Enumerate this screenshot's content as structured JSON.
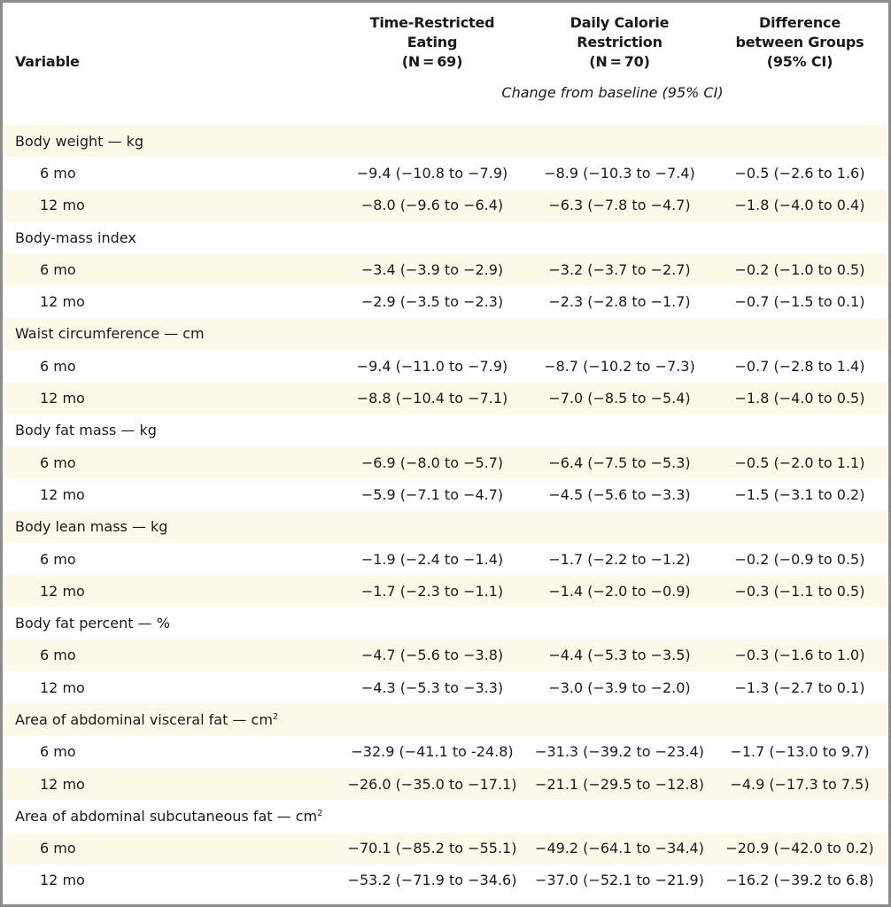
{
  "columns": {
    "variable": "Variable",
    "tre": [
      "Time-Restricted",
      "Eating",
      "(N = 69)"
    ],
    "dcr": [
      "Daily Calorie",
      "Restriction",
      "(N = 70)"
    ],
    "diff": [
      "Difference",
      "between Groups",
      "(95% CI)"
    ]
  },
  "subheader": "Change from baseline (95% CI)",
  "sections": [
    {
      "label": "Body weight — kg",
      "rows": [
        {
          "time": "6 mo",
          "tre": "−9.4 (−10.8 to −7.9)",
          "dcr": "−8.9 (−10.3 to −7.4)",
          "diff": "−0.5 (−2.6 to 1.6)"
        },
        {
          "time": "12 mo",
          "tre": "−8.0 (−9.6 to −6.4)",
          "dcr": "−6.3 (−7.8 to −4.7)",
          "diff": "−1.8 (−4.0 to 0.4)"
        }
      ]
    },
    {
      "label": "Body-mass index",
      "rows": [
        {
          "time": "6 mo",
          "tre": "−3.4 (−3.9 to −2.9)",
          "dcr": "−3.2 (−3.7 to −2.7)",
          "diff": "−0.2 (−1.0 to 0.5)"
        },
        {
          "time": "12 mo",
          "tre": "−2.9 (−3.5 to −2.3)",
          "dcr": "−2.3 (−2.8 to −1.7)",
          "diff": "−0.7 (−1.5 to 0.1)"
        }
      ]
    },
    {
      "label": "Waist circumference — cm",
      "rows": [
        {
          "time": "6 mo",
          "tre": "−9.4 (−11.0 to −7.9)",
          "dcr": "−8.7 (−10.2 to −7.3)",
          "diff": "−0.7 (−2.8 to 1.4)"
        },
        {
          "time": "12 mo",
          "tre": "−8.8 (−10.4 to −7.1)",
          "dcr": "−7.0 (−8.5 to −5.4)",
          "diff": "−1.8 (−4.0 to 0.5)"
        }
      ]
    },
    {
      "label": "Body fat mass — kg",
      "rows": [
        {
          "time": "6 mo",
          "tre": "−6.9 (−8.0 to −5.7)",
          "dcr": "−6.4 (−7.5 to −5.3)",
          "diff": "−0.5 (−2.0 to 1.1)"
        },
        {
          "time": "12 mo",
          "tre": "−5.9 (−7.1 to −4.7)",
          "dcr": "−4.5 (−5.6 to −3.3)",
          "diff": "−1.5 (−3.1 to 0.2)"
        }
      ]
    },
    {
      "label": "Body lean mass — kg",
      "rows": [
        {
          "time": "6 mo",
          "tre": "−1.9 (−2.4 to −1.4)",
          "dcr": "−1.7 (−2.2 to −1.2)",
          "diff": "−0.2 (−0.9 to 0.5)"
        },
        {
          "time": "12 mo",
          "tre": "−1.7 (−2.3 to −1.1)",
          "dcr": "−1.4 (−2.0 to −0.9)",
          "diff": "−0.3 (−1.1 to 0.5)"
        }
      ]
    },
    {
      "label": "Body fat percent — %",
      "rows": [
        {
          "time": "6 mo",
          "tre": "−4.7 (−5.6 to −3.8)",
          "dcr": "−4.4 (−5.3 to −3.5)",
          "diff": "−0.3 (−1.6 to 1.0)"
        },
        {
          "time": "12 mo",
          "tre": "−4.3 (−5.3 to −3.3)",
          "dcr": "−3.0 (−3.9 to −2.0)",
          "diff": "−1.3 (−2.7 to 0.1)"
        }
      ]
    },
    {
      "label": "Area of abdominal visceral fat — cm",
      "sup": "2",
      "rows": [
        {
          "time": "6 mo",
          "tre": "−32.9 (−41.1 to -24.8)",
          "dcr": "−31.3 (−39.2 to −23.4)",
          "diff": "−1.7 (−13.0 to 9.7)"
        },
        {
          "time": "12 mo",
          "tre": "−26.0 (−35.0 to −17.1)",
          "dcr": "−21.1 (−29.5 to −12.8)",
          "diff": "−4.9 (−17.3 to 7.5)"
        }
      ]
    },
    {
      "label": "Area of abdominal subcutaneous fat — cm",
      "sup": "2",
      "rows": [
        {
          "time": "6 mo",
          "tre": "−70.1 (−85.2 to −55.1)",
          "dcr": "−49.2 (−64.1 to −34.4)",
          "diff": "−20.9 (−42.0 to 0.2)"
        },
        {
          "time": "12 mo",
          "tre": "−53.2 (−71.9 to −34.6)",
          "dcr": "−37.0 (−52.1 to −21.9)",
          "diff": "−16.2 (−39.2 to 6.8)"
        }
      ]
    }
  ]
}
